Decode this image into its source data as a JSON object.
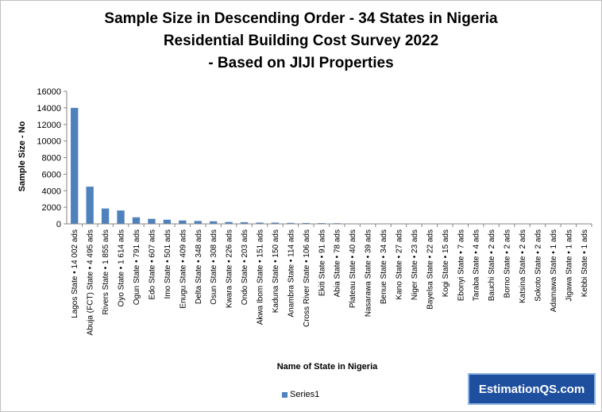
{
  "title_lines": [
    "Sample Size in Descending Order - 34 States in Nigeria",
    "Residential Building Cost Survey 2022",
    "- Based on JIJI Properties"
  ],
  "badge": "EstimationQS.com",
  "chart_data": {
    "type": "bar",
    "title": "Sample Size in Descending Order - 34 States in Nigeria Residential Building Cost Survey 2022 - Based on JIJI Properties",
    "xlabel": "Name of State in Nigeria",
    "ylabel": "Sample Size - No",
    "ylim": [
      0,
      16000
    ],
    "yticks": [
      0,
      2000,
      4000,
      6000,
      8000,
      10000,
      12000,
      14000,
      16000
    ],
    "grid": false,
    "legend_position": "bottom",
    "bar_color": "#4f81bd",
    "categories": [
      "Lagos State • 14 002 ads",
      "Abuja (FCT) State • 4 495 ads",
      "Rivers State • 1 855 ads",
      "Oyo State • 1 614 ads",
      "Ogun State • 791 ads",
      "Edo State • 607 ads",
      "Imo State • 501 ads",
      "Enugu State • 409 ads",
      "Delta State • 348 ads",
      "Osun State • 308 ads",
      "Kwara State • 226 ads",
      "Ondo State • 203 ads",
      "Akwa Ibom State • 151 ads",
      "Kaduna State • 150 ads",
      "Anambra State • 114 ads",
      "Cross River State • 106 ads",
      "Ekiti State • 91 ads",
      "Abia State • 78 ads",
      "Plateau State • 40 ads",
      "Nasarawa State • 39 ads",
      "Benue State • 34 ads",
      "Kano State • 27 ads",
      "Niger State • 23 ads",
      "Bayelsa State • 22 ads",
      "Kogi State • 15 ads",
      "Ebonyi State • 7 ads",
      "Taraba State • 4 ads",
      "Bauchi State • 2 ads",
      "Borno State • 2 ads",
      "Katsina State • 2 ads",
      "Sokoto State • 2 ads",
      "Adamawa State • 1 ads",
      "Jigawa State • 1 ads",
      "Kebbi State • 1 ads"
    ],
    "series": [
      {
        "name": "Series1",
        "values": [
          14002,
          4495,
          1855,
          1614,
          791,
          607,
          501,
          409,
          348,
          308,
          226,
          203,
          151,
          150,
          114,
          106,
          91,
          78,
          40,
          39,
          34,
          27,
          23,
          22,
          15,
          7,
          4,
          2,
          2,
          2,
          2,
          1,
          1,
          1
        ]
      }
    ]
  }
}
